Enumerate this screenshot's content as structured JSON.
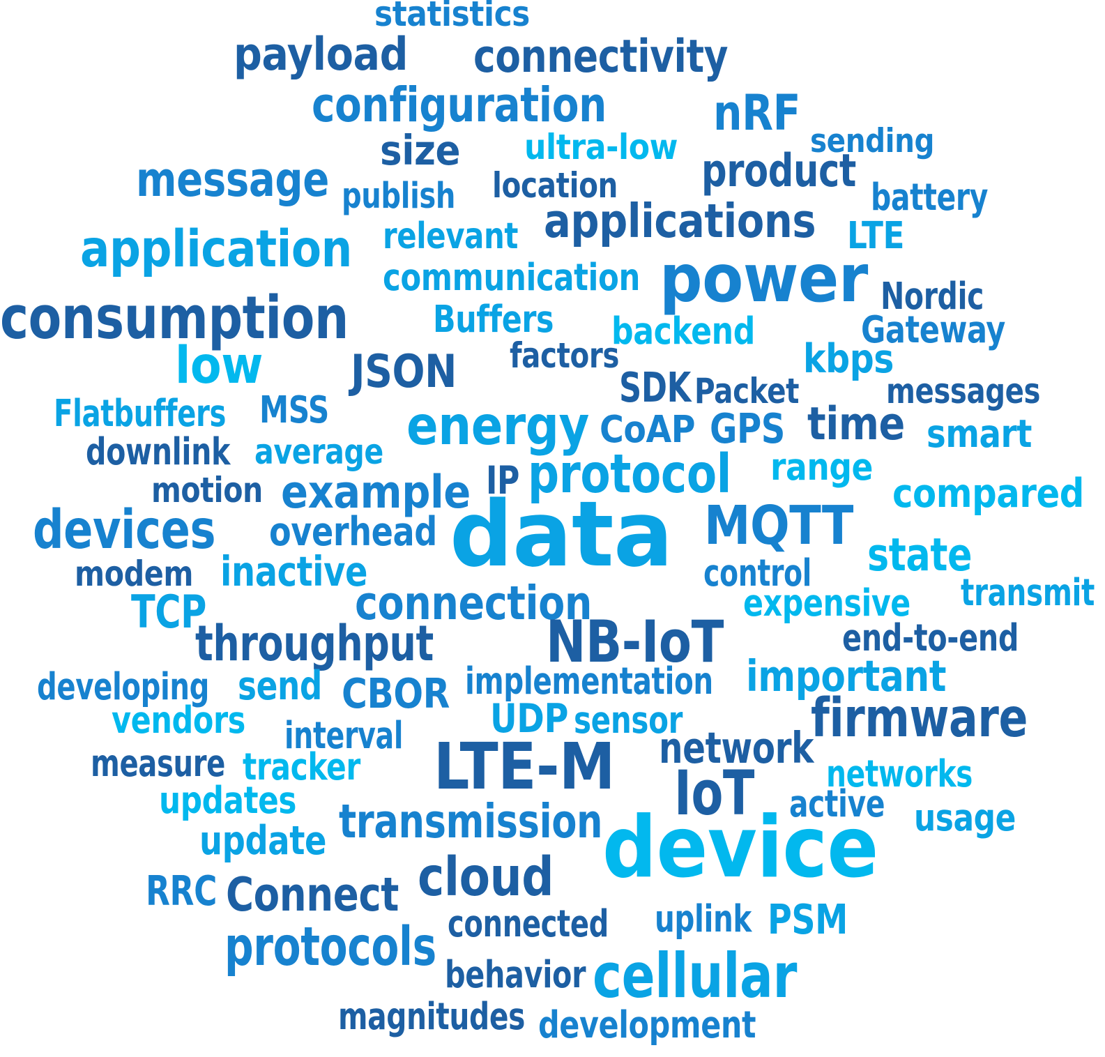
{
  "palette": {
    "dark": "#1d5fa3",
    "mid": "#1782cf",
    "light": "#0aa3e4",
    "cyan": "#02b8ee"
  },
  "words": [
    {
      "text": "statistics",
      "color": "mid"
    },
    {
      "text": "payload",
      "color": "dark"
    },
    {
      "text": "connectivity",
      "color": "dark"
    },
    {
      "text": "configuration",
      "color": "mid"
    },
    {
      "text": "nRF",
      "color": "mid"
    },
    {
      "text": "size",
      "color": "dark"
    },
    {
      "text": "ultra-low",
      "color": "cyan"
    },
    {
      "text": "sending",
      "color": "mid"
    },
    {
      "text": "message",
      "color": "mid"
    },
    {
      "text": "publish",
      "color": "mid"
    },
    {
      "text": "location",
      "color": "dark"
    },
    {
      "text": "product",
      "color": "dark"
    },
    {
      "text": "battery",
      "color": "mid"
    },
    {
      "text": "applications",
      "color": "dark"
    },
    {
      "text": "application",
      "color": "light"
    },
    {
      "text": "relevant",
      "color": "light"
    },
    {
      "text": "LTE",
      "color": "light"
    },
    {
      "text": "communication",
      "color": "light"
    },
    {
      "text": "power",
      "color": "mid"
    },
    {
      "text": "Nordic",
      "color": "dark"
    },
    {
      "text": "consumption",
      "color": "dark"
    },
    {
      "text": "Buffers",
      "color": "light"
    },
    {
      "text": "backend",
      "color": "cyan"
    },
    {
      "text": "Gateway",
      "color": "mid"
    },
    {
      "text": "low",
      "color": "cyan"
    },
    {
      "text": "JSON",
      "color": "dark"
    },
    {
      "text": "factors",
      "color": "dark"
    },
    {
      "text": "kbps",
      "color": "light"
    },
    {
      "text": "SDK",
      "color": "dark"
    },
    {
      "text": "Packet",
      "color": "dark"
    },
    {
      "text": "messages",
      "color": "dark"
    },
    {
      "text": "Flatbuffers",
      "color": "light"
    },
    {
      "text": "MSS",
      "color": "mid"
    },
    {
      "text": "energy",
      "color": "light"
    },
    {
      "text": "CoAP",
      "color": "mid"
    },
    {
      "text": "GPS",
      "color": "mid"
    },
    {
      "text": "time",
      "color": "dark"
    },
    {
      "text": "smart",
      "color": "light"
    },
    {
      "text": "downlink",
      "color": "dark"
    },
    {
      "text": "average",
      "color": "light"
    },
    {
      "text": "range",
      "color": "cyan"
    },
    {
      "text": "motion",
      "color": "dark"
    },
    {
      "text": "example",
      "color": "mid"
    },
    {
      "text": "IP",
      "color": "dark"
    },
    {
      "text": "protocol",
      "color": "light"
    },
    {
      "text": "compared",
      "color": "cyan"
    },
    {
      "text": "devices",
      "color": "mid"
    },
    {
      "text": "overhead",
      "color": "mid"
    },
    {
      "text": "data",
      "color": "light"
    },
    {
      "text": "MQTT",
      "color": "mid"
    },
    {
      "text": "state",
      "color": "cyan"
    },
    {
      "text": "modem",
      "color": "dark"
    },
    {
      "text": "inactive",
      "color": "light"
    },
    {
      "text": "control",
      "color": "mid"
    },
    {
      "text": "transmit",
      "color": "light"
    },
    {
      "text": "TCP",
      "color": "light"
    },
    {
      "text": "connection",
      "color": "mid"
    },
    {
      "text": "expensive",
      "color": "cyan"
    },
    {
      "text": "throughput",
      "color": "dark"
    },
    {
      "text": "NB-IoT",
      "color": "dark"
    },
    {
      "text": "end-to-end",
      "color": "dark"
    },
    {
      "text": "developing",
      "color": "mid"
    },
    {
      "text": "send",
      "color": "light"
    },
    {
      "text": "CBOR",
      "color": "mid"
    },
    {
      "text": "implementation",
      "color": "mid"
    },
    {
      "text": "important",
      "color": "light"
    },
    {
      "text": "vendors",
      "color": "cyan"
    },
    {
      "text": "UDP",
      "color": "light"
    },
    {
      "text": "sensor",
      "color": "light"
    },
    {
      "text": "firmware",
      "color": "dark"
    },
    {
      "text": "interval",
      "color": "mid"
    },
    {
      "text": "measure",
      "color": "dark"
    },
    {
      "text": "tracker",
      "color": "cyan"
    },
    {
      "text": "LTE-M",
      "color": "dark"
    },
    {
      "text": "network",
      "color": "dark"
    },
    {
      "text": "networks",
      "color": "cyan"
    },
    {
      "text": "updates",
      "color": "cyan"
    },
    {
      "text": "IoT",
      "color": "dark"
    },
    {
      "text": "active",
      "color": "mid"
    },
    {
      "text": "transmission",
      "color": "mid"
    },
    {
      "text": "usage",
      "color": "light"
    },
    {
      "text": "update",
      "color": "light"
    },
    {
      "text": "device",
      "color": "cyan"
    },
    {
      "text": "RRC",
      "color": "mid"
    },
    {
      "text": "Connect",
      "color": "dark"
    },
    {
      "text": "cloud",
      "color": "dark"
    },
    {
      "text": "connected",
      "color": "dark"
    },
    {
      "text": "uplink",
      "color": "mid"
    },
    {
      "text": "PSM",
      "color": "light"
    },
    {
      "text": "protocols",
      "color": "mid"
    },
    {
      "text": "behavior",
      "color": "dark"
    },
    {
      "text": "cellular",
      "color": "light"
    },
    {
      "text": "magnitudes",
      "color": "dark"
    },
    {
      "text": "development",
      "color": "mid"
    }
  ]
}
